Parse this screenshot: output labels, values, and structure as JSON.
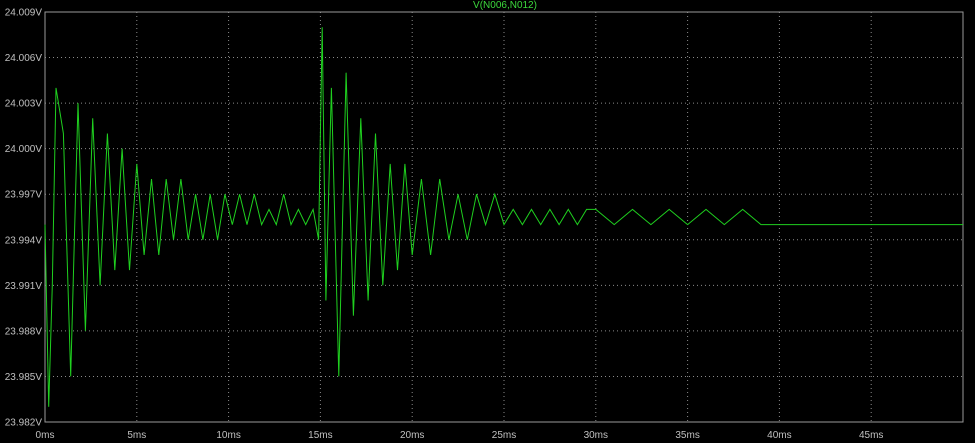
{
  "chart_data": {
    "type": "line",
    "title": "V(N006,N012)",
    "x_unit": "ms",
    "y_unit": "V",
    "xlim": [
      0,
      50
    ],
    "ylim": [
      23.982,
      24.009
    ],
    "x_ticks": [
      "0ms",
      "5ms",
      "10ms",
      "15ms",
      "20ms",
      "25ms",
      "30ms",
      "35ms",
      "40ms",
      "45ms"
    ],
    "y_ticks": [
      "24.009V",
      "24.006V",
      "24.003V",
      "24.000V",
      "23.997V",
      "23.994V",
      "23.991V",
      "23.988V",
      "23.985V",
      "23.982V"
    ],
    "grid": true,
    "colors": {
      "trace": "#1fd01f",
      "background": "#000000",
      "grid": "#8a8a8a",
      "text": "#c0c0c0"
    },
    "series": [
      {
        "name": "V(N006,N012)",
        "x": [
          0,
          0.2,
          0.4,
          0.6,
          1.0,
          1.4,
          1.8,
          2.2,
          2.6,
          3.0,
          3.4,
          3.8,
          4.2,
          4.6,
          5.0,
          5.4,
          5.8,
          6.2,
          6.6,
          7.0,
          7.4,
          7.8,
          8.2,
          8.6,
          9.0,
          9.4,
          9.8,
          10.2,
          10.6,
          11.0,
          11.4,
          11.8,
          12.2,
          12.6,
          13.0,
          13.4,
          13.8,
          14.2,
          14.6,
          14.9,
          15.1,
          15.3,
          15.6,
          16.0,
          16.4,
          16.8,
          17.2,
          17.6,
          18.0,
          18.4,
          18.8,
          19.2,
          19.6,
          20.0,
          20.5,
          21.0,
          21.5,
          22.0,
          22.5,
          23.0,
          23.5,
          24.0,
          24.5,
          25.0,
          25.5,
          26.0,
          26.5,
          27.0,
          27.5,
          28.0,
          28.5,
          29.0,
          29.5,
          30.0,
          31.0,
          32.0,
          33.0,
          34.0,
          35.0,
          36.0,
          37.0,
          38.0,
          39.0,
          40.0,
          42.0,
          44.0,
          46.0,
          48.0,
          50.0
        ],
        "values": [
          23.995,
          23.983,
          23.991,
          24.004,
          24.001,
          23.985,
          24.003,
          23.988,
          24.002,
          23.991,
          24.001,
          23.992,
          24.0,
          23.992,
          23.999,
          23.993,
          23.998,
          23.993,
          23.998,
          23.994,
          23.998,
          23.994,
          23.997,
          23.994,
          23.997,
          23.994,
          23.997,
          23.995,
          23.997,
          23.995,
          23.997,
          23.995,
          23.996,
          23.995,
          23.997,
          23.995,
          23.996,
          23.995,
          23.996,
          23.994,
          24.008,
          23.99,
          24.004,
          23.985,
          24.005,
          23.989,
          24.002,
          23.99,
          24.001,
          23.991,
          23.999,
          23.992,
          23.999,
          23.993,
          23.998,
          23.993,
          23.998,
          23.994,
          23.997,
          23.994,
          23.997,
          23.995,
          23.997,
          23.995,
          23.996,
          23.995,
          23.996,
          23.995,
          23.996,
          23.995,
          23.996,
          23.995,
          23.996,
          23.996,
          23.995,
          23.996,
          23.995,
          23.996,
          23.995,
          23.996,
          23.995,
          23.996,
          23.995,
          23.995,
          23.995,
          23.995,
          23.995,
          23.995,
          23.995
        ]
      }
    ]
  }
}
